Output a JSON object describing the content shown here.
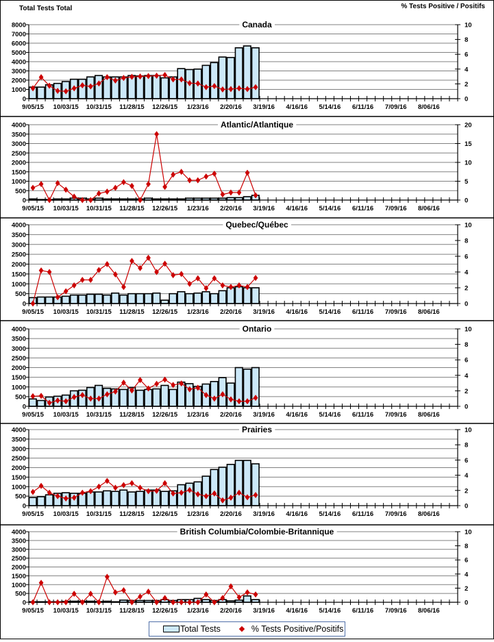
{
  "header": {
    "left_axis_title": "Total Tests Total",
    "right_axis_title": "% Tests Positive / Positifs"
  },
  "legend": {
    "bar_label": "Total Tests",
    "point_label": "% Tests Positive/Positifs"
  },
  "colors": {
    "bar_fill": "#cce8f8",
    "bar_stroke": "#000000",
    "line": "#cc0000",
    "grid": "#808080"
  },
  "chart_data": [
    {
      "type": "bar",
      "title": "Canada",
      "ylabel": "Total Tests Total",
      "y2label": "% Tests Positive / Positifs",
      "ylim": [
        0,
        8000
      ],
      "yticks": [
        0,
        1000,
        2000,
        3000,
        4000,
        5000,
        6000,
        7000,
        8000
      ],
      "y2lim": [
        0,
        10
      ],
      "y2ticks": [
        0,
        2,
        4,
        6,
        8,
        10
      ],
      "x_labels": [
        "9/05/15",
        "10/03/15",
        "10/31/15",
        "11/28/15",
        "12/26/15",
        "1/23/16",
        "2/20/16",
        "3/19/16",
        "4/16/16",
        "5/14/16",
        "6/11/16",
        "7/09/16",
        "8/06/16"
      ],
      "weeks": 52,
      "series": [
        {
          "name": "Total Tests",
          "kind": "bar",
          "values": [
            1250,
            1250,
            1500,
            1650,
            1850,
            2100,
            2100,
            2350,
            2500,
            2350,
            2350,
            2350,
            2500,
            2450,
            2500,
            2500,
            2250,
            2350,
            3250,
            3150,
            3200,
            3600,
            3900,
            4500,
            4450,
            5500,
            5700,
            5500
          ]
        },
        {
          "name": "% Tests Positive/Positifs",
          "kind": "line",
          "axis": "right",
          "values": [
            1.4,
            2.9,
            1.75,
            1.05,
            1.0,
            1.4,
            1.8,
            1.65,
            2.05,
            2.9,
            2.45,
            2.8,
            2.95,
            3.0,
            3.05,
            3.1,
            3.2,
            2.6,
            2.6,
            2.1,
            2.05,
            1.55,
            1.7,
            1.25,
            1.3,
            1.4,
            1.3,
            1.55
          ]
        }
      ]
    },
    {
      "type": "bar",
      "title": "Atlantic/Atlantique",
      "ylim": [
        0,
        4000
      ],
      "yticks": [
        0,
        500,
        1000,
        1500,
        2000,
        2500,
        3000,
        3500,
        4000
      ],
      "y2lim": [
        0,
        20
      ],
      "y2ticks": [
        0,
        5,
        10,
        15,
        20
      ],
      "x_labels": [
        "9/05/15",
        "10/03/15",
        "10/31/15",
        "11/28/15",
        "12/26/15",
        "1/23/16",
        "2/20/16",
        "3/19/16",
        "4/16/16",
        "5/14/16",
        "6/11/16",
        "7/09/16",
        "8/06/16"
      ],
      "weeks": 52,
      "series": [
        {
          "name": "Total Tests",
          "kind": "bar",
          "values": [
            60,
            30,
            30,
            60,
            60,
            100,
            100,
            60,
            100,
            60,
            60,
            60,
            60,
            60,
            100,
            60,
            60,
            60,
            60,
            100,
            100,
            100,
            100,
            100,
            130,
            130,
            180,
            250
          ]
        },
        {
          "name": "% Tests Positive/Positifs",
          "kind": "line",
          "axis": "right",
          "values": [
            3.25,
            4.25,
            0,
            4.5,
            2.75,
            0.9,
            0,
            0,
            1.75,
            2.25,
            3.25,
            4.75,
            3.75,
            0,
            4.25,
            17.5,
            3.5,
            6.75,
            7.5,
            5.25,
            5.25,
            6.25,
            7.0,
            1.5,
            2.0,
            2.0,
            7.25,
            1.25
          ]
        }
      ]
    },
    {
      "type": "bar",
      "title": "Quebec/Québec",
      "ylim": [
        0,
        4000
      ],
      "yticks": [
        0,
        500,
        1000,
        1500,
        2000,
        2500,
        3000,
        3500,
        4000
      ],
      "y2lim": [
        0,
        10
      ],
      "y2ticks": [
        0,
        2,
        4,
        6,
        8,
        10
      ],
      "x_labels": [
        "9/05/15",
        "10/03/15",
        "10/31/15",
        "11/28/15",
        "12/26/15",
        "1/23/16",
        "2/20/16",
        "3/19/16",
        "4/16/16",
        "5/14/16",
        "6/11/16",
        "7/09/16",
        "8/06/16"
      ],
      "weeks": 52,
      "series": [
        {
          "name": "Total Tests",
          "kind": "bar",
          "values": [
            300,
            330,
            330,
            330,
            370,
            430,
            430,
            470,
            470,
            430,
            530,
            430,
            500,
            500,
            500,
            530,
            170,
            500,
            600,
            500,
            530,
            600,
            500,
            650,
            800,
            850,
            800,
            800
          ]
        },
        {
          "name": "% Tests Positive/Positifs",
          "kind": "line",
          "axis": "right",
          "values": [
            0,
            4.2,
            4.0,
            0.8,
            1.55,
            2.3,
            3.0,
            3.0,
            4.25,
            5.0,
            3.7,
            2.1,
            5.4,
            4.5,
            5.8,
            4.0,
            5.05,
            3.6,
            3.75,
            2.5,
            3.2,
            1.95,
            3.2,
            2.3,
            2.1,
            2.3,
            2.1,
            3.25
          ]
        }
      ]
    },
    {
      "type": "bar",
      "title": "Ontario",
      "ylim": [
        0,
        4000
      ],
      "yticks": [
        0,
        500,
        1000,
        1500,
        2000,
        2500,
        3000,
        3500,
        4000
      ],
      "y2lim": [
        0,
        10
      ],
      "y2ticks": [
        0,
        2,
        4,
        6,
        8,
        10
      ],
      "x_labels": [
        "9/05/15",
        "10/03/15",
        "10/31/15",
        "11/28/15",
        "12/26/15",
        "1/23/16",
        "2/20/16",
        "3/19/16",
        "4/16/16",
        "5/14/16",
        "6/11/16",
        "7/09/16",
        "8/06/16"
      ],
      "weeks": 52,
      "series": [
        {
          "name": "Total Tests",
          "kind": "bar",
          "values": [
            380,
            300,
            480,
            520,
            580,
            800,
            830,
            970,
            1080,
            930,
            900,
            870,
            970,
            830,
            870,
            900,
            1080,
            870,
            1250,
            1170,
            1030,
            1150,
            1280,
            1480,
            1200,
            2000,
            1920,
            2000
          ]
        },
        {
          "name": "% Tests Positive/Positifs",
          "kind": "line",
          "axis": "right",
          "values": [
            1.3,
            1.35,
            0.45,
            0.75,
            0.65,
            1.2,
            1.45,
            1.0,
            1.0,
            1.55,
            1.9,
            3.05,
            2.05,
            3.4,
            2.3,
            2.9,
            3.45,
            2.75,
            2.95,
            2.2,
            2.4,
            1.45,
            1.0,
            1.55,
            0.9,
            0.65,
            0.65,
            1.1
          ]
        }
      ]
    },
    {
      "type": "bar",
      "title": "Prairies",
      "ylim": [
        0,
        4000
      ],
      "yticks": [
        0,
        500,
        1000,
        1500,
        2000,
        2500,
        3000,
        3500,
        4000
      ],
      "y2lim": [
        0,
        10
      ],
      "y2ticks": [
        0,
        2,
        4,
        6,
        8,
        10
      ],
      "x_labels": [
        "9/05/15",
        "10/03/15",
        "10/31/15",
        "11/28/15",
        "12/26/15",
        "1/23/16",
        "2/20/16",
        "3/19/16",
        "4/16/16",
        "5/14/16",
        "6/11/16",
        "7/09/16",
        "8/06/16"
      ],
      "weeks": 52,
      "series": [
        {
          "name": "Total Tests",
          "kind": "bar",
          "values": [
            430,
            470,
            570,
            650,
            680,
            650,
            650,
            720,
            720,
            780,
            750,
            820,
            720,
            750,
            820,
            820,
            750,
            780,
            1100,
            1180,
            1250,
            1550,
            1900,
            2020,
            2170,
            2380,
            2380,
            2200
          ]
        },
        {
          "name": "% Tests Positive/Positifs",
          "kind": "line",
          "axis": "right",
          "values": [
            1.8,
            2.6,
            1.7,
            1.25,
            0.95,
            1.05,
            1.7,
            1.9,
            2.5,
            3.25,
            2.35,
            2.7,
            2.95,
            2.35,
            1.9,
            1.95,
            2.95,
            1.6,
            1.7,
            2.05,
            1.5,
            1.25,
            1.6,
            0.7,
            1.05,
            1.7,
            1.1,
            1.4
          ]
        }
      ]
    },
    {
      "type": "bar",
      "title": "British Columbia/Colombie-Britannique",
      "ylim": [
        0,
        4000
      ],
      "yticks": [
        0,
        500,
        1000,
        1500,
        2000,
        2500,
        3000,
        3500,
        4000
      ],
      "y2lim": [
        0,
        10
      ],
      "y2ticks": [
        0,
        2,
        4,
        6,
        8,
        10
      ],
      "x_labels": [
        "9/05/15",
        "10/03/15",
        "10/31/15",
        "11/28/15",
        "12/26/15",
        "1/23/16",
        "2/20/16",
        "3/19/16",
        "4/16/16",
        "5/14/16",
        "6/11/16",
        "7/09/16",
        "8/06/16"
      ],
      "weeks": 52,
      "series": [
        {
          "name": "Total Tests",
          "kind": "bar",
          "values": [
            30,
            30,
            30,
            30,
            50,
            60,
            60,
            60,
            40,
            60,
            30,
            120,
            100,
            100,
            100,
            100,
            150,
            100,
            150,
            150,
            220,
            150,
            100,
            150,
            80,
            120,
            360,
            150
          ]
        },
        {
          "name": "% Tests Positive/Positifs",
          "kind": "line",
          "axis": "right",
          "values": [
            0,
            2.75,
            0,
            0,
            0,
            1.2,
            0,
            1.2,
            0,
            3.6,
            1.4,
            1.7,
            0,
            0.8,
            1.5,
            0,
            0.6,
            0,
            0,
            0,
            0,
            1.1,
            0,
            0.6,
            2.25,
            0.7,
            1.4,
            1.1
          ]
        }
      ]
    }
  ]
}
